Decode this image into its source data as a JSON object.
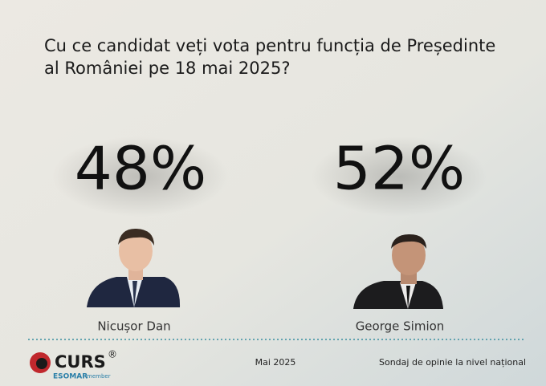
{
  "header": {
    "title_lines": [
      "Cu ce candidat veți vota pentru funcția de Președinte",
      "al României pe 18 mai 2025?"
    ]
  },
  "candidates": [
    {
      "result": "48%",
      "name": "Nicușor Dan"
    },
    {
      "result": "52%",
      "name": "George Simion"
    }
  ],
  "footer": {
    "logo": {
      "brand": "CURS",
      "mark": "®",
      "esomar": "ESOMAR",
      "member": "member"
    },
    "date": "Mai 2025",
    "note": "Sondaj de opinie la nivel național"
  }
}
